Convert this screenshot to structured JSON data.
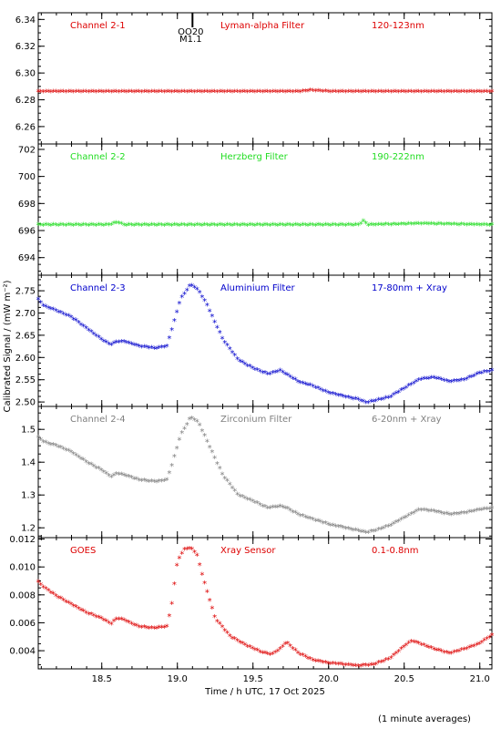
{
  "figure": {
    "ylabel": "Calibrated Signal / (mW m⁻²)",
    "xlabel": "Time / h UTC, 17 Oct 2025",
    "footnote": "(1 minute averages)",
    "marker_text_1": "OO20",
    "marker_text_2": "M1.1",
    "marker_time": 19.1
  },
  "chart_data": [
    {
      "type": "scatter",
      "channel": "Channel 2-1",
      "filter": "Lyman-alpha Filter",
      "band": "120-123nm",
      "color": "#dd0000",
      "xlim": [
        18.08,
        21.08
      ],
      "ylim": [
        6.247,
        6.345
      ],
      "yticks": [
        6.26,
        6.28,
        6.3,
        6.32,
        6.34
      ],
      "ytick_labels": [
        "6.26",
        "6.28",
        "6.30",
        "6.32",
        "6.34"
      ],
      "x": [
        18.08,
        18.5,
        19.0,
        19.5,
        19.8,
        19.9,
        20.0,
        20.5,
        21.08
      ],
      "y": [
        6.286,
        6.286,
        6.286,
        6.286,
        6.286,
        6.287,
        6.286,
        6.286,
        6.286
      ]
    },
    {
      "type": "scatter",
      "channel": "Channel 2-2",
      "filter": "Herzberg Filter",
      "band": "190-222nm",
      "color": "#22dd22",
      "xlim": [
        18.08,
        21.08
      ],
      "ylim": [
        692.7,
        702.4
      ],
      "yticks": [
        694,
        696,
        698,
        700,
        702
      ],
      "ytick_labels": [
        "694",
        "696",
        "698",
        "700",
        "702"
      ],
      "x": [
        18.08,
        18.55,
        18.6,
        18.65,
        19.5,
        20.2,
        20.23,
        20.26,
        20.6,
        21.08
      ],
      "y": [
        696.4,
        696.4,
        696.6,
        696.4,
        696.4,
        696.4,
        696.7,
        696.4,
        696.5,
        696.4
      ]
    },
    {
      "type": "scatter",
      "channel": "Channel 2-3",
      "filter": "Aluminium Filter",
      "band": "17-80nm + Xray",
      "color": "#0000cc",
      "xlim": [
        18.08,
        21.08
      ],
      "ylim": [
        2.49,
        2.785
      ],
      "yticks": [
        2.5,
        2.55,
        2.6,
        2.65,
        2.7,
        2.75
      ],
      "ytick_labels": [
        "2.50",
        "2.55",
        "2.60",
        "2.65",
        "2.70",
        "2.75"
      ],
      "x": [
        18.08,
        18.12,
        18.2,
        18.3,
        18.4,
        18.5,
        18.56,
        18.6,
        18.65,
        18.75,
        18.85,
        18.93,
        18.97,
        19.02,
        19.08,
        19.1,
        19.14,
        19.2,
        19.3,
        19.4,
        19.5,
        19.6,
        19.68,
        19.73,
        19.8,
        19.9,
        20.0,
        20.1,
        20.2,
        20.25,
        20.3,
        20.4,
        20.5,
        20.6,
        20.7,
        20.8,
        20.9,
        21.0,
        21.08
      ],
      "y": [
        2.73,
        2.715,
        2.705,
        2.69,
        2.665,
        2.64,
        2.628,
        2.635,
        2.635,
        2.625,
        2.62,
        2.625,
        2.67,
        2.73,
        2.76,
        2.762,
        2.75,
        2.715,
        2.64,
        2.595,
        2.575,
        2.562,
        2.57,
        2.56,
        2.545,
        2.535,
        2.52,
        2.512,
        2.505,
        2.498,
        2.502,
        2.51,
        2.53,
        2.55,
        2.555,
        2.545,
        2.55,
        2.565,
        2.57
      ]
    },
    {
      "type": "scatter",
      "channel": "Channel 2-4",
      "filter": "Zirconium Filter",
      "band": "6-20nm + Xray",
      "color": "#808080",
      "xlim": [
        18.08,
        21.08
      ],
      "ylim": [
        1.17,
        1.57
      ],
      "yticks": [
        1.2,
        1.3,
        1.4,
        1.5
      ],
      "ytick_labels": [
        "1.2",
        "1.3",
        "1.4",
        "1.5"
      ],
      "x": [
        18.08,
        18.12,
        18.2,
        18.3,
        18.4,
        18.5,
        18.56,
        18.6,
        18.65,
        18.75,
        18.85,
        18.93,
        18.97,
        19.02,
        19.08,
        19.1,
        19.14,
        19.2,
        19.3,
        19.4,
        19.5,
        19.6,
        19.68,
        19.72,
        19.8,
        19.9,
        20.0,
        20.1,
        20.2,
        20.25,
        20.3,
        20.4,
        20.5,
        20.6,
        20.7,
        20.8,
        20.9,
        21.0,
        21.08
      ],
      "y": [
        1.475,
        1.46,
        1.45,
        1.43,
        1.4,
        1.375,
        1.355,
        1.365,
        1.36,
        1.345,
        1.34,
        1.345,
        1.4,
        1.48,
        1.53,
        1.535,
        1.52,
        1.46,
        1.36,
        1.3,
        1.28,
        1.26,
        1.265,
        1.26,
        1.24,
        1.225,
        1.21,
        1.2,
        1.19,
        1.185,
        1.19,
        1.205,
        1.23,
        1.255,
        1.25,
        1.24,
        1.245,
        1.255,
        1.26
      ]
    },
    {
      "type": "scatter",
      "channel": "GOES",
      "filter": "Xray Sensor",
      "band": "0.1-0.8nm",
      "color": "#dd0000",
      "xlim": [
        18.08,
        21.08
      ],
      "ylim": [
        0.0027,
        0.0121
      ],
      "yticks": [
        0.004,
        0.006,
        0.008,
        0.01,
        0.012
      ],
      "ytick_labels": [
        "0.004",
        "0.006",
        "0.008",
        "0.010",
        "0.012"
      ],
      "x": [
        18.08,
        18.12,
        18.2,
        18.3,
        18.4,
        18.5,
        18.56,
        18.6,
        18.65,
        18.7,
        18.75,
        18.85,
        18.93,
        18.96,
        19.0,
        19.05,
        19.1,
        19.13,
        19.18,
        19.25,
        19.35,
        19.45,
        19.55,
        19.62,
        19.68,
        19.72,
        19.8,
        19.9,
        20.0,
        20.1,
        20.2,
        20.3,
        20.4,
        20.5,
        20.55,
        20.6,
        20.7,
        20.8,
        20.9,
        21.0,
        21.08
      ],
      "y": [
        0.0089,
        0.0085,
        0.0079,
        0.0073,
        0.0067,
        0.0063,
        0.0059,
        0.0063,
        0.0062,
        0.0059,
        0.0057,
        0.0056,
        0.0057,
        0.0071,
        0.0104,
        0.0113,
        0.0113,
        0.0108,
        0.0088,
        0.0063,
        0.005,
        0.0044,
        0.0039,
        0.0037,
        0.0041,
        0.0046,
        0.0038,
        0.0033,
        0.0031,
        0.003,
        0.0029,
        0.003,
        0.0034,
        0.0043,
        0.0047,
        0.0045,
        0.0041,
        0.0038,
        0.0041,
        0.0045,
        0.0051
      ]
    }
  ],
  "x_axis": {
    "ticks": [
      18.5,
      19.0,
      19.5,
      20.0,
      20.5,
      21.0
    ],
    "tick_labels": [
      "18.5",
      "19.0",
      "19.5",
      "20.0",
      "20.5",
      "21.0"
    ],
    "minor_step": 0.1
  }
}
